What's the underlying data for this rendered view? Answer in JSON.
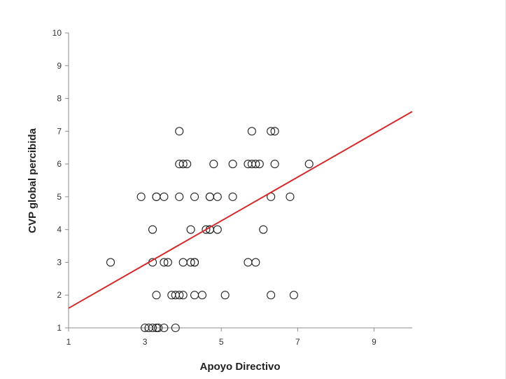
{
  "chart_data": {
    "type": "scatter",
    "title": "",
    "xlabel": "Apoyo Directivo",
    "ylabel": "CVP global percibida",
    "xlim": [
      1,
      10
    ],
    "ylim": [
      1,
      10
    ],
    "xticks": [
      1,
      3,
      5,
      7,
      9
    ],
    "yticks": [
      1,
      2,
      3,
      4,
      5,
      6,
      7,
      8,
      9,
      10
    ],
    "grid": false,
    "legend": "none",
    "marker": "open-circle",
    "trendline": {
      "type": "linear",
      "x": [
        1,
        10
      ],
      "y": [
        1.6,
        7.6
      ],
      "color": "#d42a2a"
    },
    "points": [
      {
        "x": 2.1,
        "y": 3
      },
      {
        "x": 2.9,
        "y": 5
      },
      {
        "x": 3.2,
        "y": 4
      },
      {
        "x": 3.2,
        "y": 3
      },
      {
        "x": 3.3,
        "y": 5
      },
      {
        "x": 3.3,
        "y": 5
      },
      {
        "x": 3.5,
        "y": 5
      },
      {
        "x": 3.3,
        "y": 2
      },
      {
        "x": 3.5,
        "y": 3
      },
      {
        "x": 3.6,
        "y": 3
      },
      {
        "x": 3.7,
        "y": 2
      },
      {
        "x": 3.8,
        "y": 2
      },
      {
        "x": 3.9,
        "y": 2
      },
      {
        "x": 4.0,
        "y": 2
      },
      {
        "x": 3.9,
        "y": 5
      },
      {
        "x": 3.9,
        "y": 6
      },
      {
        "x": 4.0,
        "y": 6
      },
      {
        "x": 4.1,
        "y": 6
      },
      {
        "x": 3.9,
        "y": 7
      },
      {
        "x": 4.0,
        "y": 3
      },
      {
        "x": 4.2,
        "y": 4
      },
      {
        "x": 4.2,
        "y": 3
      },
      {
        "x": 4.3,
        "y": 3
      },
      {
        "x": 4.3,
        "y": 3
      },
      {
        "x": 4.3,
        "y": 5
      },
      {
        "x": 4.3,
        "y": 2
      },
      {
        "x": 4.5,
        "y": 2
      },
      {
        "x": 4.6,
        "y": 4
      },
      {
        "x": 4.7,
        "y": 4
      },
      {
        "x": 4.7,
        "y": 4
      },
      {
        "x": 4.7,
        "y": 5
      },
      {
        "x": 4.7,
        "y": 5
      },
      {
        "x": 4.8,
        "y": 6
      },
      {
        "x": 4.9,
        "y": 5
      },
      {
        "x": 4.9,
        "y": 4
      },
      {
        "x": 5.1,
        "y": 2
      },
      {
        "x": 5.3,
        "y": 6
      },
      {
        "x": 5.3,
        "y": 5
      },
      {
        "x": 5.7,
        "y": 6
      },
      {
        "x": 5.7,
        "y": 3
      },
      {
        "x": 5.8,
        "y": 6
      },
      {
        "x": 5.9,
        "y": 6
      },
      {
        "x": 5.9,
        "y": 3
      },
      {
        "x": 5.8,
        "y": 7
      },
      {
        "x": 6.0,
        "y": 6
      },
      {
        "x": 6.1,
        "y": 4
      },
      {
        "x": 6.3,
        "y": 7
      },
      {
        "x": 6.4,
        "y": 7
      },
      {
        "x": 6.3,
        "y": 5
      },
      {
        "x": 6.4,
        "y": 6
      },
      {
        "x": 6.3,
        "y": 2
      },
      {
        "x": 6.8,
        "y": 5
      },
      {
        "x": 6.9,
        "y": 2
      },
      {
        "x": 7.3,
        "y": 6
      },
      {
        "x": 3.0,
        "y": 1
      },
      {
        "x": 3.1,
        "y": 1
      },
      {
        "x": 3.2,
        "y": 1
      },
      {
        "x": 3.3,
        "y": 1
      },
      {
        "x": 3.35,
        "y": 1
      },
      {
        "x": 3.5,
        "y": 1
      },
      {
        "x": 3.8,
        "y": 1
      }
    ]
  }
}
